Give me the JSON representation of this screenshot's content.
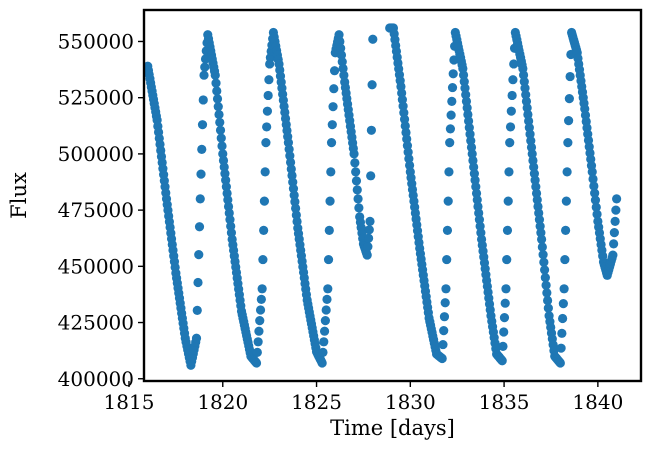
{
  "chart_data": {
    "type": "scatter",
    "xlabel": "Time [days]",
    "ylabel": "Flux",
    "xlim": [
      1815.8,
      1842.3
    ],
    "ylim": [
      399000,
      564000
    ],
    "x_ticks": [
      1815,
      1820,
      1825,
      1830,
      1835,
      1840
    ],
    "y_ticks": [
      400000,
      425000,
      450000,
      475000,
      500000,
      525000,
      550000
    ],
    "x_tick_labels": [
      "1815",
      "1820",
      "1825",
      "1830",
      "1835",
      "1840"
    ],
    "y_tick_labels": [
      "400000",
      "425000",
      "450000",
      "475000",
      "500000",
      "525000",
      "550000"
    ],
    "grid": false,
    "marker_color": "#1f77b4",
    "series": [
      {
        "x": [
          1816.0,
          1816.5,
          1817.0,
          1817.5,
          1818.0,
          1818.3,
          1818.6,
          1818.8,
          1819.0,
          1819.2,
          1819.6,
          1820.0,
          1820.5,
          1821.0,
          1821.5,
          1821.8,
          1822.1,
          1822.3,
          1822.5,
          1822.7,
          1823.0,
          1823.5,
          1824.0,
          1824.5,
          1825.0,
          1825.3,
          1825.6,
          1825.8,
          1826.0,
          1826.2,
          1826.5,
          1827.0,
          1827.3,
          1827.5,
          1827.7,
          1827.85,
          1828.0,
          1828.9,
          1829.1,
          1829.5,
          1830.0,
          1830.5,
          1831.0,
          1831.4,
          1831.7,
          1831.9,
          1832.1,
          1832.4,
          1832.8,
          1833.3,
          1833.8,
          1834.3,
          1834.6,
          1834.9,
          1835.1,
          1835.3,
          1835.6,
          1836.0,
          1836.5,
          1837.0,
          1837.4,
          1837.7,
          1838.0,
          1838.2,
          1838.4,
          1838.6,
          1838.9,
          1839.3,
          1839.7,
          1840.0,
          1840.3,
          1840.5,
          1840.8,
          1841.0
        ],
        "y": [
          539000,
          515000,
          480000,
          447000,
          418000,
          406000,
          418000,
          480000,
          535000,
          553000,
          535000,
          500000,
          462000,
          430000,
          410000,
          407000,
          440000,
          505000,
          540000,
          554000,
          540000,
          505000,
          467000,
          435000,
          412000,
          407000,
          440000,
          505000,
          545000,
          553000,
          532000,
          500000,
          472000,
          460000,
          455000,
          470000,
          551000,
          556000,
          556000,
          530000,
          492000,
          458000,
          427000,
          411000,
          409000,
          440000,
          505000,
          554000,
          538000,
          500000,
          462000,
          428000,
          411000,
          408000,
          440000,
          505000,
          554000,
          538000,
          500000,
          462000,
          428000,
          410000,
          407000,
          440000,
          505000,
          554000,
          545000,
          520000,
          492000,
          470000,
          452000,
          446000,
          455000,
          480000
        ]
      }
    ]
  }
}
